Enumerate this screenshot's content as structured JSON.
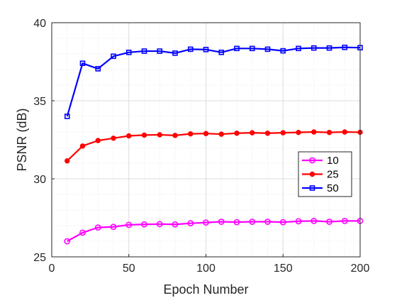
{
  "chart_data": {
    "type": "line",
    "title": "",
    "xlabel": "Epoch Number",
    "ylabel": "PSNR (dB)",
    "xlim": [
      0,
      200
    ],
    "ylim": [
      25,
      40
    ],
    "xticks": [
      0,
      50,
      100,
      150,
      200
    ],
    "yticks": [
      25,
      30,
      35,
      40
    ],
    "grid": true,
    "minor_grid": true,
    "legend_position": "right",
    "x": [
      10,
      20,
      30,
      40,
      50,
      60,
      70,
      80,
      90,
      100,
      110,
      120,
      130,
      140,
      150,
      160,
      170,
      180,
      190,
      200
    ],
    "series": [
      {
        "name": "10",
        "color": "#ff00ff",
        "marker": "circle",
        "values": [
          26.0,
          26.55,
          26.88,
          26.92,
          27.05,
          27.08,
          27.1,
          27.08,
          27.15,
          27.2,
          27.25,
          27.22,
          27.25,
          27.25,
          27.22,
          27.28,
          27.3,
          27.25,
          27.3,
          27.3
        ]
      },
      {
        "name": "25",
        "color": "#ff0000",
        "marker": "dot",
        "values": [
          31.15,
          32.1,
          32.45,
          32.6,
          32.75,
          32.8,
          32.82,
          32.78,
          32.88,
          32.9,
          32.86,
          32.92,
          32.95,
          32.92,
          32.95,
          32.97,
          33.0,
          32.97,
          33.0,
          32.98
        ]
      },
      {
        "name": "50",
        "color": "#0000ff",
        "marker": "square",
        "values": [
          34.0,
          37.4,
          37.05,
          37.85,
          38.1,
          38.18,
          38.18,
          38.05,
          38.3,
          38.28,
          38.1,
          38.35,
          38.35,
          38.3,
          38.2,
          38.35,
          38.38,
          38.38,
          38.42,
          38.4
        ]
      }
    ]
  }
}
